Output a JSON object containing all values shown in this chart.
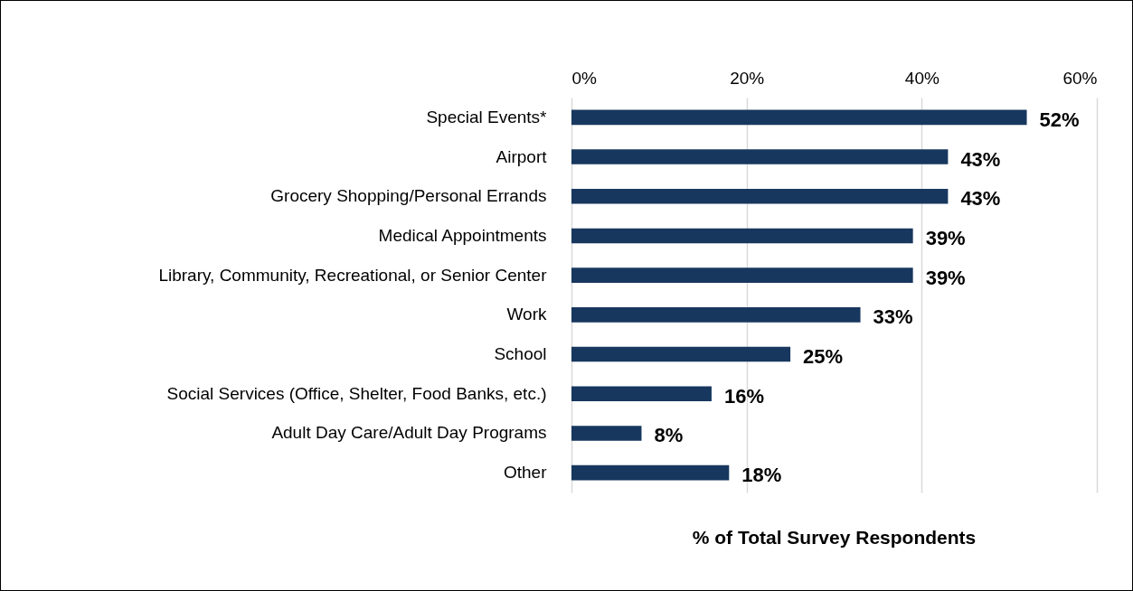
{
  "chart_data": {
    "type": "bar",
    "orientation": "horizontal",
    "xlabel": "% of Total Survey Respondents",
    "categories": [
      "Special Events*",
      "Airport",
      "Grocery Shopping/Personal Errands",
      "Medical Appointments",
      "Library, Community, Recreational, or Senior Center",
      "Work",
      "School",
      "Social Services (Office, Shelter, Food Banks, etc.)",
      "Adult Day Care/Adult Day Programs",
      "Other"
    ],
    "values": [
      52,
      43,
      43,
      39,
      39,
      33,
      25,
      16,
      8,
      18
    ],
    "value_labels": [
      "52%",
      "43%",
      "43%",
      "39%",
      "39%",
      "33%",
      "25%",
      "16%",
      "8%",
      "18%"
    ],
    "color": "#17375e",
    "xlim": [
      0,
      60
    ],
    "xticks": [
      {
        "value": 0,
        "label": "0%"
      },
      {
        "value": 20,
        "label": "20%"
      },
      {
        "value": 40,
        "label": "40%"
      },
      {
        "value": 60,
        "label": "60%"
      }
    ],
    "grid": "x"
  }
}
